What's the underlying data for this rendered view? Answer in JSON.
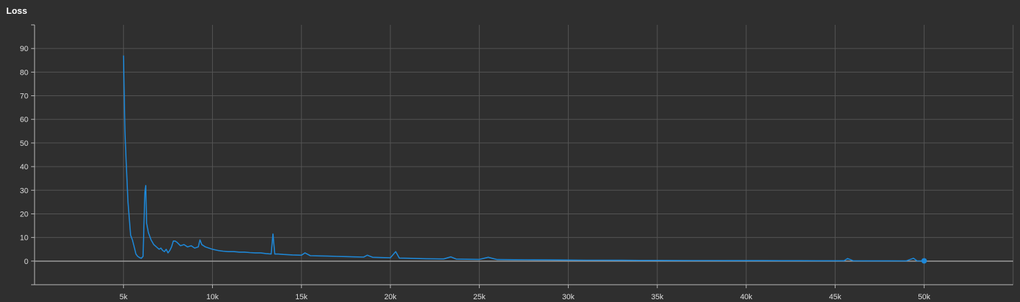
{
  "panel": {
    "title": "Loss"
  },
  "colors": {
    "background": "#2f2f2f",
    "grid": "#555555",
    "axis": "#bdbdbd",
    "zero_line": "#9e9e9e",
    "series": "#1e88d8",
    "text": "#e0e0e0"
  },
  "chart_data": {
    "type": "line",
    "title": "Loss",
    "xlabel": "",
    "ylabel": "",
    "xlim": [
      0,
      55000
    ],
    "ylim": [
      -10,
      100
    ],
    "grid": true,
    "x_ticks": [
      5000,
      10000,
      15000,
      20000,
      25000,
      30000,
      35000,
      40000,
      45000,
      50000
    ],
    "x_tick_labels": [
      "5k",
      "10k",
      "15k",
      "20k",
      "25k",
      "30k",
      "35k",
      "40k",
      "45k",
      "50k"
    ],
    "y_ticks": [
      0,
      10,
      20,
      30,
      40,
      50,
      60,
      70,
      80,
      90
    ],
    "y_tick_labels": [
      "0",
      "10",
      "20",
      "30",
      "40",
      "50",
      "60",
      "70",
      "80",
      "90"
    ],
    "series": [
      {
        "x": [
          5000,
          5080,
          5150,
          5250,
          5400,
          5500,
          5600,
          5700,
          5800,
          5900,
          6000,
          6100,
          6200,
          6250,
          6300,
          6400,
          6550,
          6700,
          6850,
          7000,
          7100,
          7200,
          7300,
          7400,
          7500,
          7600,
          7700,
          7800,
          7900,
          8000,
          8200,
          8400,
          8600,
          8800,
          9000,
          9200,
          9300,
          9400,
          9600,
          9800,
          10000,
          10300,
          10600,
          10900,
          11200,
          11500,
          11800,
          12100,
          12400,
          12700,
          13000,
          13300,
          13400,
          13500,
          13700,
          14000,
          14500,
          15000,
          15200,
          15500,
          16000,
          16500,
          17000,
          17500,
          18000,
          18500,
          18700,
          19000,
          19500,
          20000,
          20300,
          20500,
          21000,
          21500,
          22000,
          22500,
          23000,
          23400,
          23700,
          24000,
          25000,
          25500,
          26000,
          27000,
          28000,
          29000,
          30000,
          31000,
          32000,
          33000,
          34000,
          35000,
          36000,
          37000,
          38000,
          39000,
          40000,
          41000,
          42000,
          43000,
          44000,
          45000,
          45500,
          45700,
          46000,
          47000,
          48000,
          49000,
          49400,
          49600,
          50000
        ],
        "y": [
          87,
          55,
          42,
          25,
          11,
          9,
          6,
          3,
          2,
          1.5,
          1.2,
          2,
          29,
          32,
          16,
          12,
          9,
          7,
          6,
          5,
          5.5,
          4.5,
          4,
          5,
          3.5,
          4.5,
          6,
          8.5,
          8.5,
          8,
          6.5,
          7,
          6,
          6.5,
          5.5,
          6,
          9,
          7,
          6,
          5.5,
          5,
          4.5,
          4.2,
          4,
          4,
          3.8,
          3.8,
          3.6,
          3.5,
          3.5,
          3.2,
          3,
          11.5,
          3,
          3,
          2.8,
          2.6,
          2.5,
          3.5,
          2.3,
          2.2,
          2.1,
          2,
          1.9,
          1.8,
          1.7,
          2.5,
          1.6,
          1.5,
          1.4,
          4,
          1.3,
          1.2,
          1.1,
          1.0,
          0.95,
          0.9,
          1.8,
          0.85,
          0.8,
          0.7,
          1.6,
          0.65,
          0.6,
          0.55,
          0.5,
          0.45,
          0.4,
          0.4,
          0.35,
          0.3,
          0.3,
          0.28,
          0.25,
          0.25,
          0.22,
          0.2,
          0.2,
          0.18,
          0.18,
          0.15,
          0.15,
          0.15,
          1.1,
          0.15,
          0.12,
          0.12,
          0.1,
          1.2,
          0.1,
          0.1
        ]
      }
    ],
    "last_point": {
      "x": 50000,
      "y": 0.1
    }
  }
}
